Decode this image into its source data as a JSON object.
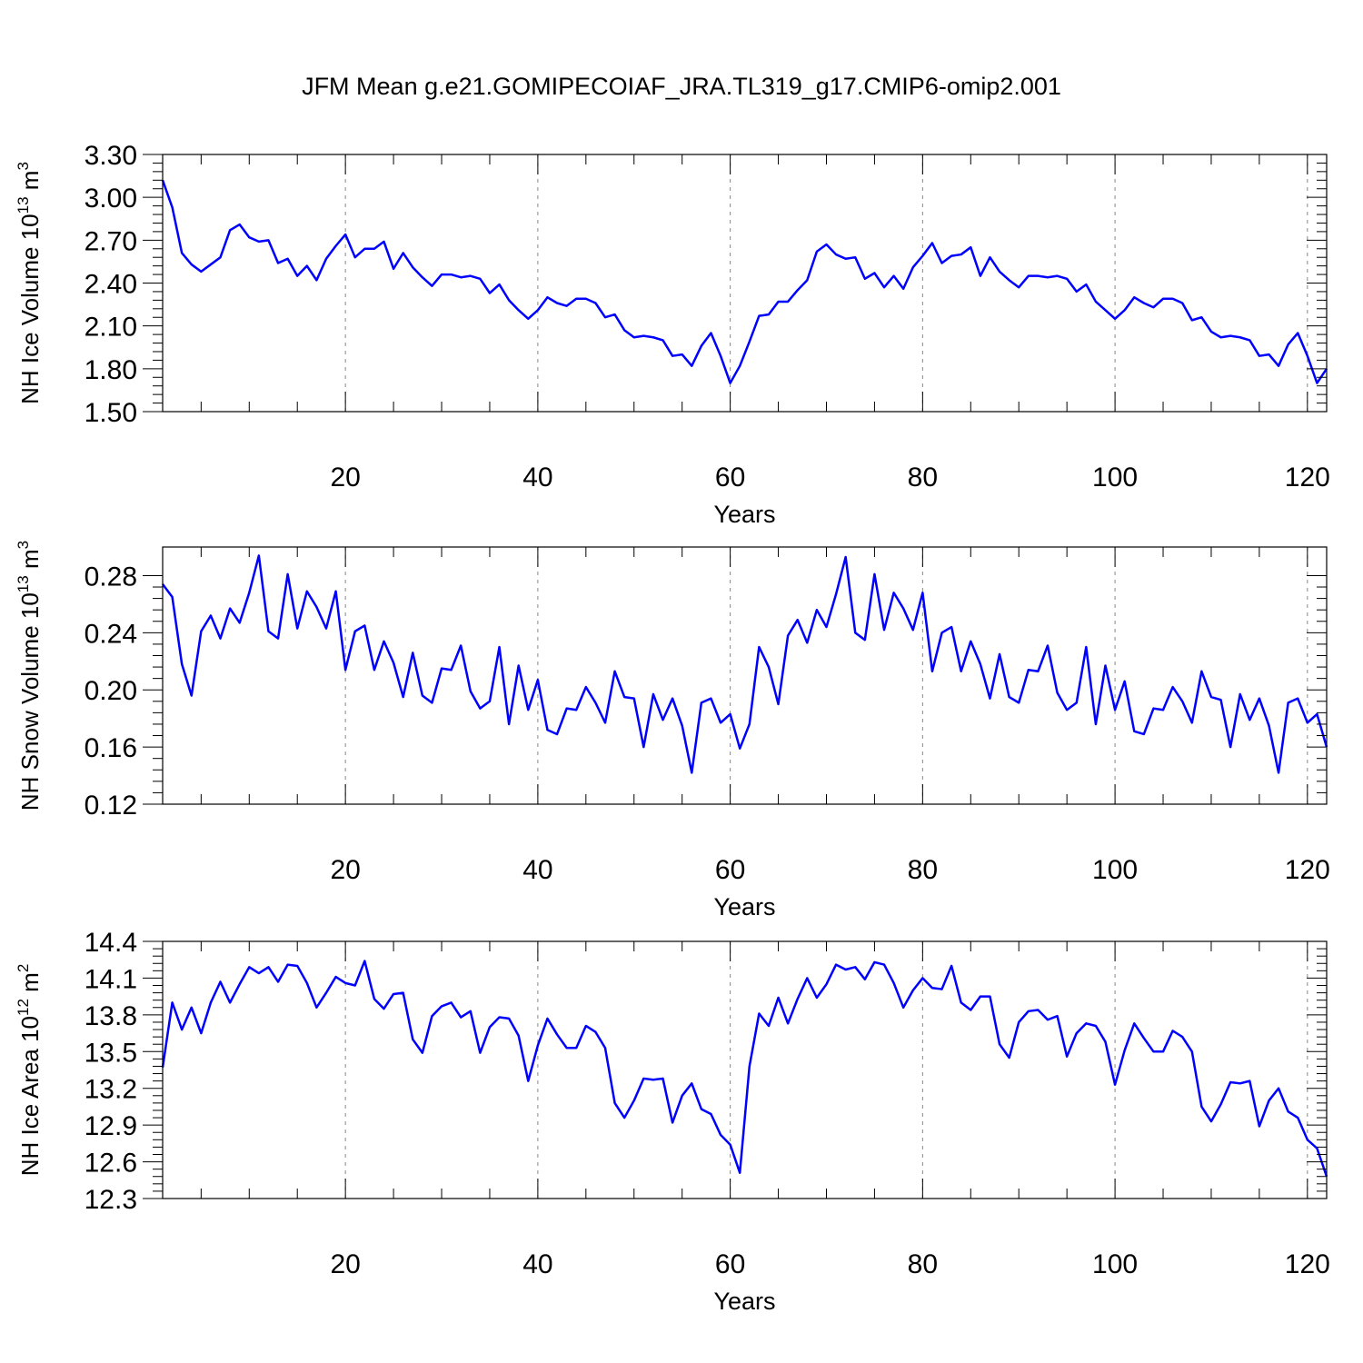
{
  "page_title": "JFM Mean g.e21.GOMIPECOIAF_JRA.TL319_g17.CMIP6-omip2.001",
  "colors": {
    "line": "#0000ff",
    "axis": "#000000",
    "grid": "#888888"
  },
  "chart_data": [
    {
      "type": "line",
      "xlabel": "Years",
      "ylabel_main": "NH Ice Volume 10",
      "ylabel_exp": "13",
      "ylabel_unit": " m",
      "ylabel_unit_exp": "3",
      "ylim": [
        1.5,
        3.3
      ],
      "yticks": [
        1.5,
        1.8,
        2.1,
        2.4,
        2.7,
        3.0,
        3.3
      ],
      "ytick_labels": [
        "1.50",
        "1.80",
        "2.10",
        "2.40",
        "2.70",
        "3.00",
        "3.30"
      ],
      "xlim": [
        1,
        122
      ],
      "xticks": [
        20,
        40,
        60,
        80,
        100,
        120
      ],
      "xtick_labels": [
        "20",
        "40",
        "60",
        "80",
        "100",
        "120"
      ],
      "grid": "vertical dashed at major x ticks",
      "series": [
        {
          "name": "NH Ice Volume",
          "x_start": 1,
          "values": [
            3.12,
            2.93,
            2.61,
            2.53,
            2.48,
            2.53,
            2.58,
            2.77,
            2.81,
            2.72,
            2.69,
            2.7,
            2.54,
            2.57,
            2.45,
            2.52,
            2.42,
            2.57,
            2.66,
            2.74,
            2.58,
            2.64,
            2.64,
            2.69,
            2.5,
            2.61,
            2.51,
            2.44,
            2.38,
            2.46,
            2.46,
            2.44,
            2.45,
            2.43,
            2.33,
            2.39,
            2.28,
            2.21,
            2.15,
            2.21,
            2.3,
            2.26,
            2.24,
            2.29,
            2.29,
            2.26,
            2.16,
            2.18,
            2.07,
            2.02,
            2.03,
            2.02,
            2.0,
            1.89,
            1.9,
            1.82,
            1.96,
            2.05,
            1.89,
            1.7,
            1.82,
            1.99,
            2.17,
            2.18,
            2.27,
            2.27,
            2.35,
            2.42,
            2.62,
            2.67,
            2.6,
            2.57,
            2.58,
            2.43,
            2.47,
            2.37,
            2.45,
            2.36,
            2.51,
            2.59,
            2.68,
            2.54,
            2.59,
            2.6,
            2.65,
            2.45,
            2.58,
            2.48,
            2.42,
            2.37,
            2.45,
            2.45,
            2.44,
            2.45,
            2.43,
            2.34,
            2.39,
            2.27,
            2.21,
            2.15,
            2.21,
            2.3,
            2.26,
            2.23,
            2.29,
            2.29,
            2.26,
            2.14,
            2.16,
            2.06,
            2.02,
            2.03,
            2.02,
            2.0,
            1.89,
            1.9,
            1.82,
            1.97,
            2.05,
            1.89,
            1.7,
            1.8
          ]
        }
      ]
    },
    {
      "type": "line",
      "xlabel": "Years",
      "ylabel_main": "NH Snow Volume 10",
      "ylabel_exp": "13",
      "ylabel_unit": " m",
      "ylabel_unit_exp": "3",
      "ylim": [
        0.12,
        0.3
      ],
      "yticks": [
        0.12,
        0.16,
        0.2,
        0.24,
        0.28
      ],
      "ytick_labels": [
        "0.12",
        "0.16",
        "0.20",
        "0.24",
        "0.28"
      ],
      "xlim": [
        1,
        122
      ],
      "xticks": [
        20,
        40,
        60,
        80,
        100,
        120
      ],
      "xtick_labels": [
        "20",
        "40",
        "60",
        "80",
        "100",
        "120"
      ],
      "grid": "vertical dashed at major x ticks",
      "series": [
        {
          "name": "NH Snow Volume",
          "x_start": 1,
          "values": [
            0.274,
            0.265,
            0.218,
            0.196,
            0.241,
            0.252,
            0.236,
            0.257,
            0.247,
            0.268,
            0.294,
            0.241,
            0.236,
            0.281,
            0.243,
            0.269,
            0.258,
            0.243,
            0.269,
            0.214,
            0.241,
            0.245,
            0.214,
            0.234,
            0.219,
            0.195,
            0.226,
            0.196,
            0.191,
            0.215,
            0.214,
            0.231,
            0.199,
            0.187,
            0.192,
            0.23,
            0.176,
            0.217,
            0.186,
            0.207,
            0.172,
            0.169,
            0.187,
            0.186,
            0.202,
            0.191,
            0.177,
            0.213,
            0.195,
            0.194,
            0.16,
            0.197,
            0.179,
            0.194,
            0.175,
            0.142,
            0.191,
            0.194,
            0.177,
            0.183,
            0.159,
            0.176,
            0.23,
            0.216,
            0.19,
            0.238,
            0.249,
            0.233,
            0.256,
            0.244,
            0.267,
            0.293,
            0.24,
            0.235,
            0.281,
            0.242,
            0.268,
            0.257,
            0.242,
            0.268,
            0.213,
            0.24,
            0.244,
            0.213,
            0.234,
            0.218,
            0.194,
            0.225,
            0.195,
            0.191,
            0.214,
            0.213,
            0.231,
            0.198,
            0.186,
            0.191,
            0.23,
            0.176,
            0.217,
            0.186,
            0.206,
            0.171,
            0.169,
            0.187,
            0.186,
            0.202,
            0.192,
            0.177,
            0.213,
            0.195,
            0.193,
            0.16,
            0.197,
            0.179,
            0.194,
            0.175,
            0.142,
            0.191,
            0.194,
            0.177,
            0.183,
            0.16
          ]
        }
      ]
    },
    {
      "type": "line",
      "xlabel": "Years",
      "ylabel_main": "NH Ice Area 10",
      "ylabel_exp": "12",
      "ylabel_unit": " m",
      "ylabel_unit_exp": "2",
      "ylim": [
        12.3,
        14.4
      ],
      "yticks": [
        12.3,
        12.6,
        12.9,
        13.2,
        13.5,
        13.8,
        14.1,
        14.4
      ],
      "ytick_labels": [
        "12.3",
        "12.6",
        "12.9",
        "13.2",
        "13.5",
        "13.8",
        "14.1",
        "14.4"
      ],
      "xlim": [
        1,
        122
      ],
      "xticks": [
        20,
        40,
        60,
        80,
        100,
        120
      ],
      "xtick_labels": [
        "20",
        "40",
        "60",
        "80",
        "100",
        "120"
      ],
      "grid": "vertical dashed at major x ticks",
      "series": [
        {
          "name": "NH Ice Area",
          "x_start": 1,
          "values": [
            13.37,
            13.9,
            13.68,
            13.86,
            13.65,
            13.9,
            14.07,
            13.9,
            14.05,
            14.19,
            14.14,
            14.19,
            14.07,
            14.21,
            14.2,
            14.06,
            13.86,
            13.98,
            14.11,
            14.06,
            14.04,
            14.24,
            13.93,
            13.85,
            13.97,
            13.98,
            13.6,
            13.49,
            13.79,
            13.87,
            13.9,
            13.78,
            13.83,
            13.49,
            13.7,
            13.78,
            13.77,
            13.63,
            13.26,
            13.55,
            13.77,
            13.64,
            13.53,
            13.53,
            13.71,
            13.66,
            13.53,
            13.08,
            12.96,
            13.1,
            13.28,
            13.27,
            13.28,
            12.92,
            13.14,
            13.24,
            13.03,
            12.99,
            12.82,
            12.74,
            12.51,
            13.38,
            13.81,
            13.71,
            13.94,
            13.73,
            13.93,
            14.1,
            13.94,
            14.05,
            14.21,
            14.17,
            14.19,
            14.09,
            14.23,
            14.21,
            14.06,
            13.86,
            14.0,
            14.1,
            14.02,
            14.01,
            14.2,
            13.9,
            13.84,
            13.95,
            13.95,
            13.56,
            13.45,
            13.74,
            13.83,
            13.84,
            13.76,
            13.79,
            13.46,
            13.65,
            13.73,
            13.71,
            13.58,
            13.23,
            13.51,
            13.73,
            13.61,
            13.5,
            13.5,
            13.67,
            13.62,
            13.5,
            13.05,
            12.93,
            13.07,
            13.25,
            13.24,
            13.26,
            12.89,
            13.1,
            13.2,
            13.01,
            12.96,
            12.78,
            12.71,
            12.48
          ]
        }
      ]
    }
  ]
}
